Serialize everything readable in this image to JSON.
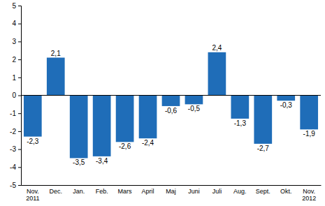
{
  "chart_data": {
    "type": "bar",
    "categories": [
      "Nov.\n2011",
      "Dec.",
      "Jan.",
      "Feb.",
      "Mars",
      "April",
      "Maj",
      "Juni",
      "Juli",
      "Aug.",
      "Sept.",
      "Okt.",
      "Nov.\n2012"
    ],
    "values": [
      -2.3,
      2.1,
      -3.5,
      -3.4,
      -2.6,
      -2.4,
      -0.6,
      -0.5,
      2.4,
      -1.3,
      -2.7,
      -0.3,
      -1.9
    ],
    "value_labels": [
      "-2,3",
      "2,1",
      "-3,5",
      "-3,4",
      "-2,6",
      "-2,4",
      "-0,6",
      "-0,5",
      "2,4",
      "-1,3",
      "-2,7",
      "-0,3",
      "-1,9"
    ],
    "color": "#1f6db8",
    "ylim": [
      -5,
      5
    ],
    "yticks": [
      -5,
      -4,
      -3,
      -2,
      -1,
      0,
      1,
      2,
      3,
      4,
      5
    ],
    "grid": false,
    "data_labels": true
  }
}
